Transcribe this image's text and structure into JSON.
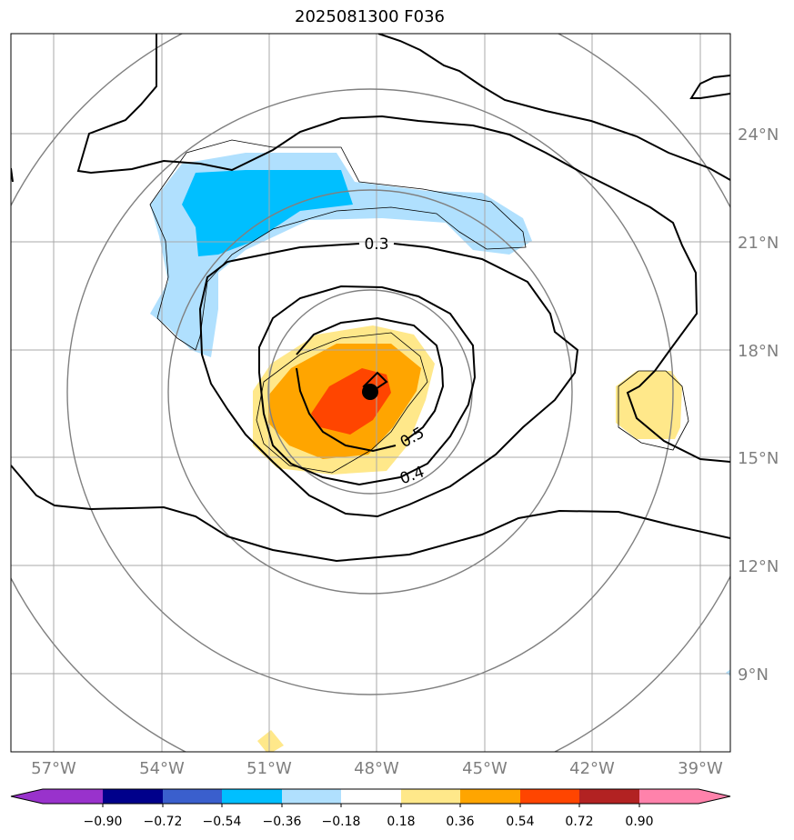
{
  "title": "2025081300 F036",
  "lon_labels": [
    "57°W",
    "54°W",
    "51°W",
    "48°W",
    "45°W",
    "42°W",
    "39°W"
  ],
  "lat_labels": [
    "24°N",
    "21°N",
    "18°N",
    "15°N",
    "12°N",
    "9°N"
  ],
  "contour_labels": [
    "0.3",
    "0.5",
    "0.4"
  ],
  "colorbar": {
    "ticks": [
      "−0.90",
      "−0.72",
      "−0.54",
      "−0.36",
      "−0.18",
      "0.18",
      "0.36",
      "0.54",
      "0.72",
      "0.90"
    ],
    "colors": [
      "#9932cc",
      "#00008b",
      "#3a5fcd",
      "#00bfff",
      "#b0e0fe",
      "#ffffff",
      "#ffe88a",
      "#ffa500",
      "#ff4500",
      "#b22222",
      "#ff82ab"
    ]
  },
  "center_marker": {
    "lon": "48°W",
    "lat": "16.8°N"
  }
}
